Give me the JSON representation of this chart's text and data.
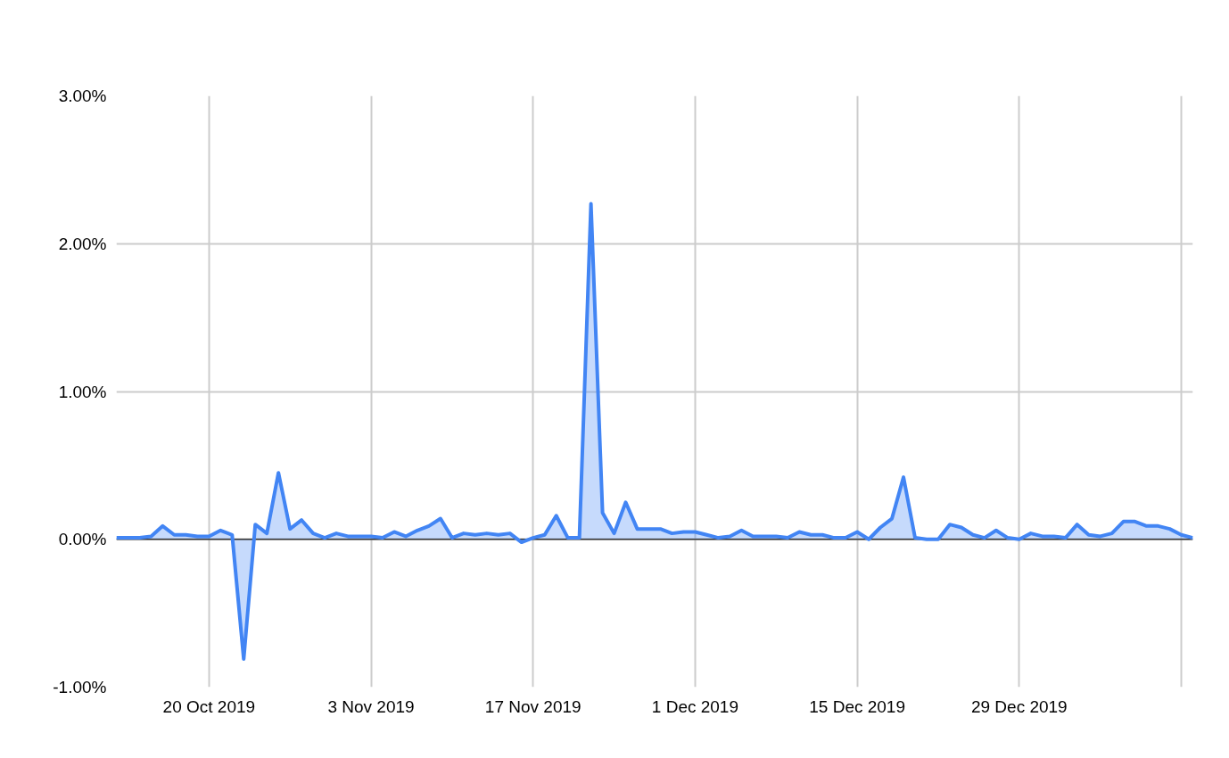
{
  "chart_data": {
    "type": "area",
    "x": [
      "2019-10-12",
      "2019-10-13",
      "2019-10-14",
      "2019-10-15",
      "2019-10-16",
      "2019-10-17",
      "2019-10-18",
      "2019-10-19",
      "2019-10-20",
      "2019-10-21",
      "2019-10-22",
      "2019-10-23",
      "2019-10-24",
      "2019-10-25",
      "2019-10-26",
      "2019-10-27",
      "2019-10-28",
      "2019-10-29",
      "2019-10-30",
      "2019-10-31",
      "2019-11-01",
      "2019-11-02",
      "2019-11-03",
      "2019-11-04",
      "2019-11-05",
      "2019-11-06",
      "2019-11-07",
      "2019-11-08",
      "2019-11-09",
      "2019-11-10",
      "2019-11-11",
      "2019-11-12",
      "2019-11-13",
      "2019-11-14",
      "2019-11-15",
      "2019-11-16",
      "2019-11-17",
      "2019-11-18",
      "2019-11-19",
      "2019-11-20",
      "2019-11-21",
      "2019-11-22",
      "2019-11-23",
      "2019-11-24",
      "2019-11-25",
      "2019-11-26",
      "2019-11-27",
      "2019-11-28",
      "2019-11-29",
      "2019-11-30",
      "2019-12-01",
      "2019-12-02",
      "2019-12-03",
      "2019-12-04",
      "2019-12-05",
      "2019-12-06",
      "2019-12-07",
      "2019-12-08",
      "2019-12-09",
      "2019-12-10",
      "2019-12-11",
      "2019-12-12",
      "2019-12-13",
      "2019-12-14",
      "2019-12-15",
      "2019-12-16",
      "2019-12-17",
      "2019-12-18",
      "2019-12-19",
      "2019-12-20",
      "2019-12-21",
      "2019-12-22",
      "2019-12-23",
      "2019-12-24",
      "2019-12-25",
      "2019-12-26",
      "2019-12-27",
      "2019-12-28",
      "2019-12-29",
      "2019-12-30",
      "2019-12-31",
      "2020-01-01",
      "2020-01-02",
      "2020-01-03",
      "2020-01-04",
      "2020-01-05",
      "2020-01-06",
      "2020-01-07",
      "2020-01-08",
      "2020-01-09",
      "2020-01-10",
      "2020-01-11",
      "2020-01-12",
      "2020-01-13"
    ],
    "series": [
      {
        "color": "#4285f4",
        "values": [
          0.01,
          0.01,
          0.01,
          0.02,
          0.09,
          0.03,
          0.03,
          0.02,
          0.02,
          0.06,
          0.03,
          -0.81,
          0.1,
          0.04,
          0.45,
          0.07,
          0.13,
          0.04,
          0.01,
          0.04,
          0.02,
          0.02,
          0.02,
          0.01,
          0.05,
          0.02,
          0.06,
          0.09,
          0.14,
          0.01,
          0.04,
          0.03,
          0.04,
          0.03,
          0.04,
          -0.02,
          0.01,
          0.03,
          0.16,
          0.01,
          0.01,
          2.27,
          0.18,
          0.04,
          0.25,
          0.07,
          0.07,
          0.07,
          0.04,
          0.05,
          0.05,
          0.03,
          0.01,
          0.02,
          0.06,
          0.02,
          0.02,
          0.02,
          0.01,
          0.05,
          0.03,
          0.03,
          0.01,
          0.01,
          0.05,
          0.0,
          0.08,
          0.14,
          0.42,
          0.01,
          0.0,
          0.0,
          0.1,
          0.08,
          0.03,
          0.01,
          0.06,
          0.01,
          0.0,
          0.04,
          0.02,
          0.02,
          0.01,
          0.1,
          0.03,
          0.02,
          0.04,
          0.12,
          0.12,
          0.09,
          0.09,
          0.07,
          0.03,
          0.01
        ]
      }
    ],
    "xlim": [
      "2019-10-12",
      "2020-01-13"
    ],
    "xticks": [
      {
        "value": "2019-10-20",
        "label": "20 Oct 2019"
      },
      {
        "value": "2019-11-03",
        "label": "3 Nov 2019"
      },
      {
        "value": "2019-11-17",
        "label": "17 Nov 2019"
      },
      {
        "value": "2019-12-01",
        "label": "1 Dec 2019"
      },
      {
        "value": "2019-12-15",
        "label": "15 Dec 2019"
      },
      {
        "value": "2019-12-29",
        "label": "29 Dec 2019"
      },
      {
        "value": "2020-01-12",
        "label": null
      }
    ],
    "ylim": [
      -1,
      3
    ],
    "yticks": [
      {
        "value": -1,
        "label": "-1.00%"
      },
      {
        "value": 0,
        "label": "0.00%"
      },
      {
        "value": 1,
        "label": "1.00%"
      },
      {
        "value": 2,
        "label": "2.00%"
      },
      {
        "value": 3,
        "label": "3.00%"
      }
    ],
    "grid": true
  }
}
